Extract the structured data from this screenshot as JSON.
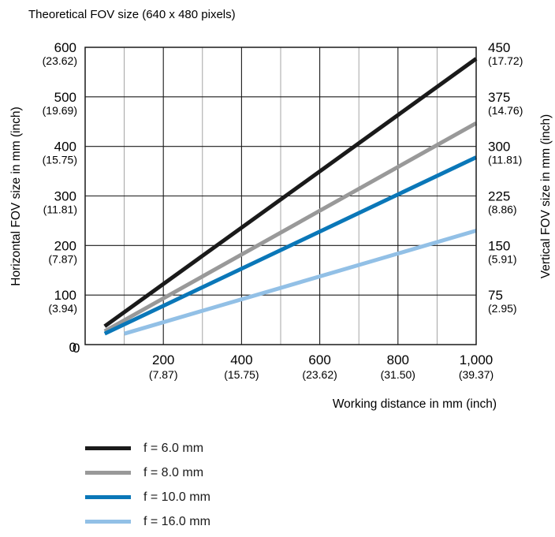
{
  "chart_data": {
    "type": "line",
    "title": "Theoretical FOV size (640 x 480 pixels)",
    "xlabel": "Working distance in mm (inch)",
    "ylabel": "Horizontal FOV size in mm (inch)",
    "y2label": "Vertical FOV size in mm (inch)",
    "xlim": [
      0,
      1000
    ],
    "ylim": [
      0,
      600
    ],
    "y2lim": [
      0,
      450
    ],
    "grid": true,
    "legend_position": "below",
    "x_ticks": [
      {
        "value": 0,
        "label": "0",
        "sub": ""
      },
      {
        "value": 200,
        "label": "200",
        "sub": "(7.87)"
      },
      {
        "value": 400,
        "label": "400",
        "sub": "(15.75)"
      },
      {
        "value": 600,
        "label": "600",
        "sub": "(23.62)"
      },
      {
        "value": 800,
        "label": "800",
        "sub": "(31.50)"
      },
      {
        "value": 1000,
        "label": "1,000",
        "sub": "(39.37)"
      }
    ],
    "y_ticks": [
      {
        "value": 0,
        "label": "0",
        "sub": ""
      },
      {
        "value": 100,
        "label": "100",
        "sub": "(3.94)"
      },
      {
        "value": 200,
        "label": "200",
        "sub": "(7.87)"
      },
      {
        "value": 300,
        "label": "300",
        "sub": "(11.81)"
      },
      {
        "value": 400,
        "label": "400",
        "sub": "(15.75)"
      },
      {
        "value": 500,
        "label": "500",
        "sub": "(19.69)"
      },
      {
        "value": 600,
        "label": "600",
        "sub": "(23.62)"
      }
    ],
    "y2_ticks": [
      {
        "value": 75,
        "label": "75",
        "sub": "(2.95)"
      },
      {
        "value": 150,
        "label": "150",
        "sub": "(5.91)"
      },
      {
        "value": 225,
        "label": "225",
        "sub": "(8.86)"
      },
      {
        "value": 300,
        "label": "300",
        "sub": "(11.81)"
      },
      {
        "value": 375,
        "label": "375",
        "sub": "(14.76)"
      },
      {
        "value": 450,
        "label": "450",
        "sub": "(17.72)"
      }
    ],
    "series": [
      {
        "name": "f = 6.0 mm",
        "color": "#1a1a1a",
        "x": [
          50,
          1000
        ],
        "y": [
          37,
          577
        ]
      },
      {
        "name": "f = 8.0 mm",
        "color": "#999999",
        "x": [
          50,
          1000
        ],
        "y": [
          27,
          447
        ]
      },
      {
        "name": "f = 10.0 mm",
        "color": "#0a77b8",
        "x": [
          50,
          1000
        ],
        "y": [
          22,
          378
        ]
      },
      {
        "name": "f = 16.0 mm",
        "color": "#92c0e6",
        "x": [
          100,
          1000
        ],
        "y": [
          22,
          230
        ]
      }
    ]
  }
}
